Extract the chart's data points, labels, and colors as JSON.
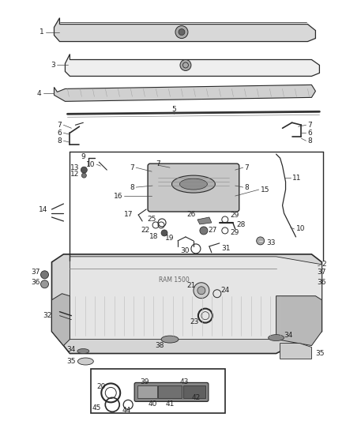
{
  "bg_color": "#ffffff",
  "fig_width": 4.38,
  "fig_height": 5.33,
  "dpi": 100,
  "lc": "#2a2a2a",
  "tc": "#222222",
  "fs": 6.5
}
